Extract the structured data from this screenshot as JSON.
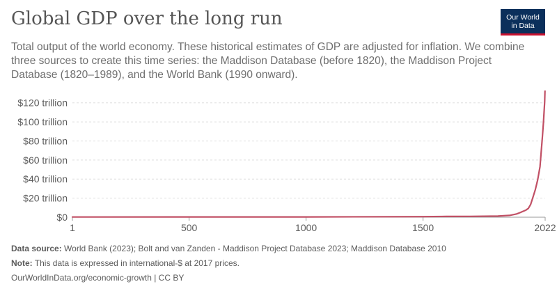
{
  "header": {
    "title": "Global GDP over the long run",
    "subtitle": "Total output of the world economy. These historical estimates of GDP are adjusted for inflation. We combine three sources to create this time series: the Maddison Database (before 1820), the Maddison Project Database (1820–1989), and the World Bank (1990 onward)."
  },
  "logo": {
    "line1": "Our World",
    "line2": "in Data",
    "bg_color": "#0b2f5b",
    "accent_color": "#c8102e"
  },
  "footer": {
    "source_label": "Data source:",
    "source_text": " World Bank (2023); Bolt and van Zanden - Maddison Project Database 2023; Maddison Database 2010",
    "note_label": "Note:",
    "note_text": " This data is expressed in international-$ at 2017 prices.",
    "url_text": "OurWorldInData.org/economic-growth | CC BY"
  },
  "chart_data": {
    "type": "line",
    "title": "Global GDP over the long run",
    "xlabel": "",
    "ylabel": "",
    "xlim": [
      1,
      2022
    ],
    "ylim": [
      0,
      130
    ],
    "y_unit": "trillion international-$ (2017 prices)",
    "x_ticks": [
      1,
      500,
      1000,
      1500,
      2022
    ],
    "y_ticks": [
      {
        "value": 0,
        "label": "$0"
      },
      {
        "value": 20,
        "label": "$20 trillion"
      },
      {
        "value": 40,
        "label": "$40 trillion"
      },
      {
        "value": 60,
        "label": "$60 trillion"
      },
      {
        "value": 80,
        "label": "$80 trillion"
      },
      {
        "value": 100,
        "label": "$100 trillion"
      },
      {
        "value": 120,
        "label": "$120 trillion"
      }
    ],
    "grid": "horizontal dashed",
    "series": [
      {
        "color": "#c15065",
        "points": [
          [
            1,
            0.2
          ],
          [
            1000,
            0.3
          ],
          [
            1500,
            0.6
          ],
          [
            1600,
            0.8
          ],
          [
            1700,
            0.9
          ],
          [
            1820,
            1.2
          ],
          [
            1870,
            1.9
          ],
          [
            1900,
            3.4
          ],
          [
            1913,
            4.7
          ],
          [
            1940,
            7.5
          ],
          [
            1950,
            9.2
          ],
          [
            1960,
            13.5
          ],
          [
            1970,
            21
          ],
          [
            1980,
            29
          ],
          [
            1990,
            39
          ],
          [
            2000,
            53
          ],
          [
            2010,
            84
          ],
          [
            2015,
            100
          ],
          [
            2020,
            121
          ],
          [
            2022,
            139
          ]
        ]
      }
    ]
  }
}
